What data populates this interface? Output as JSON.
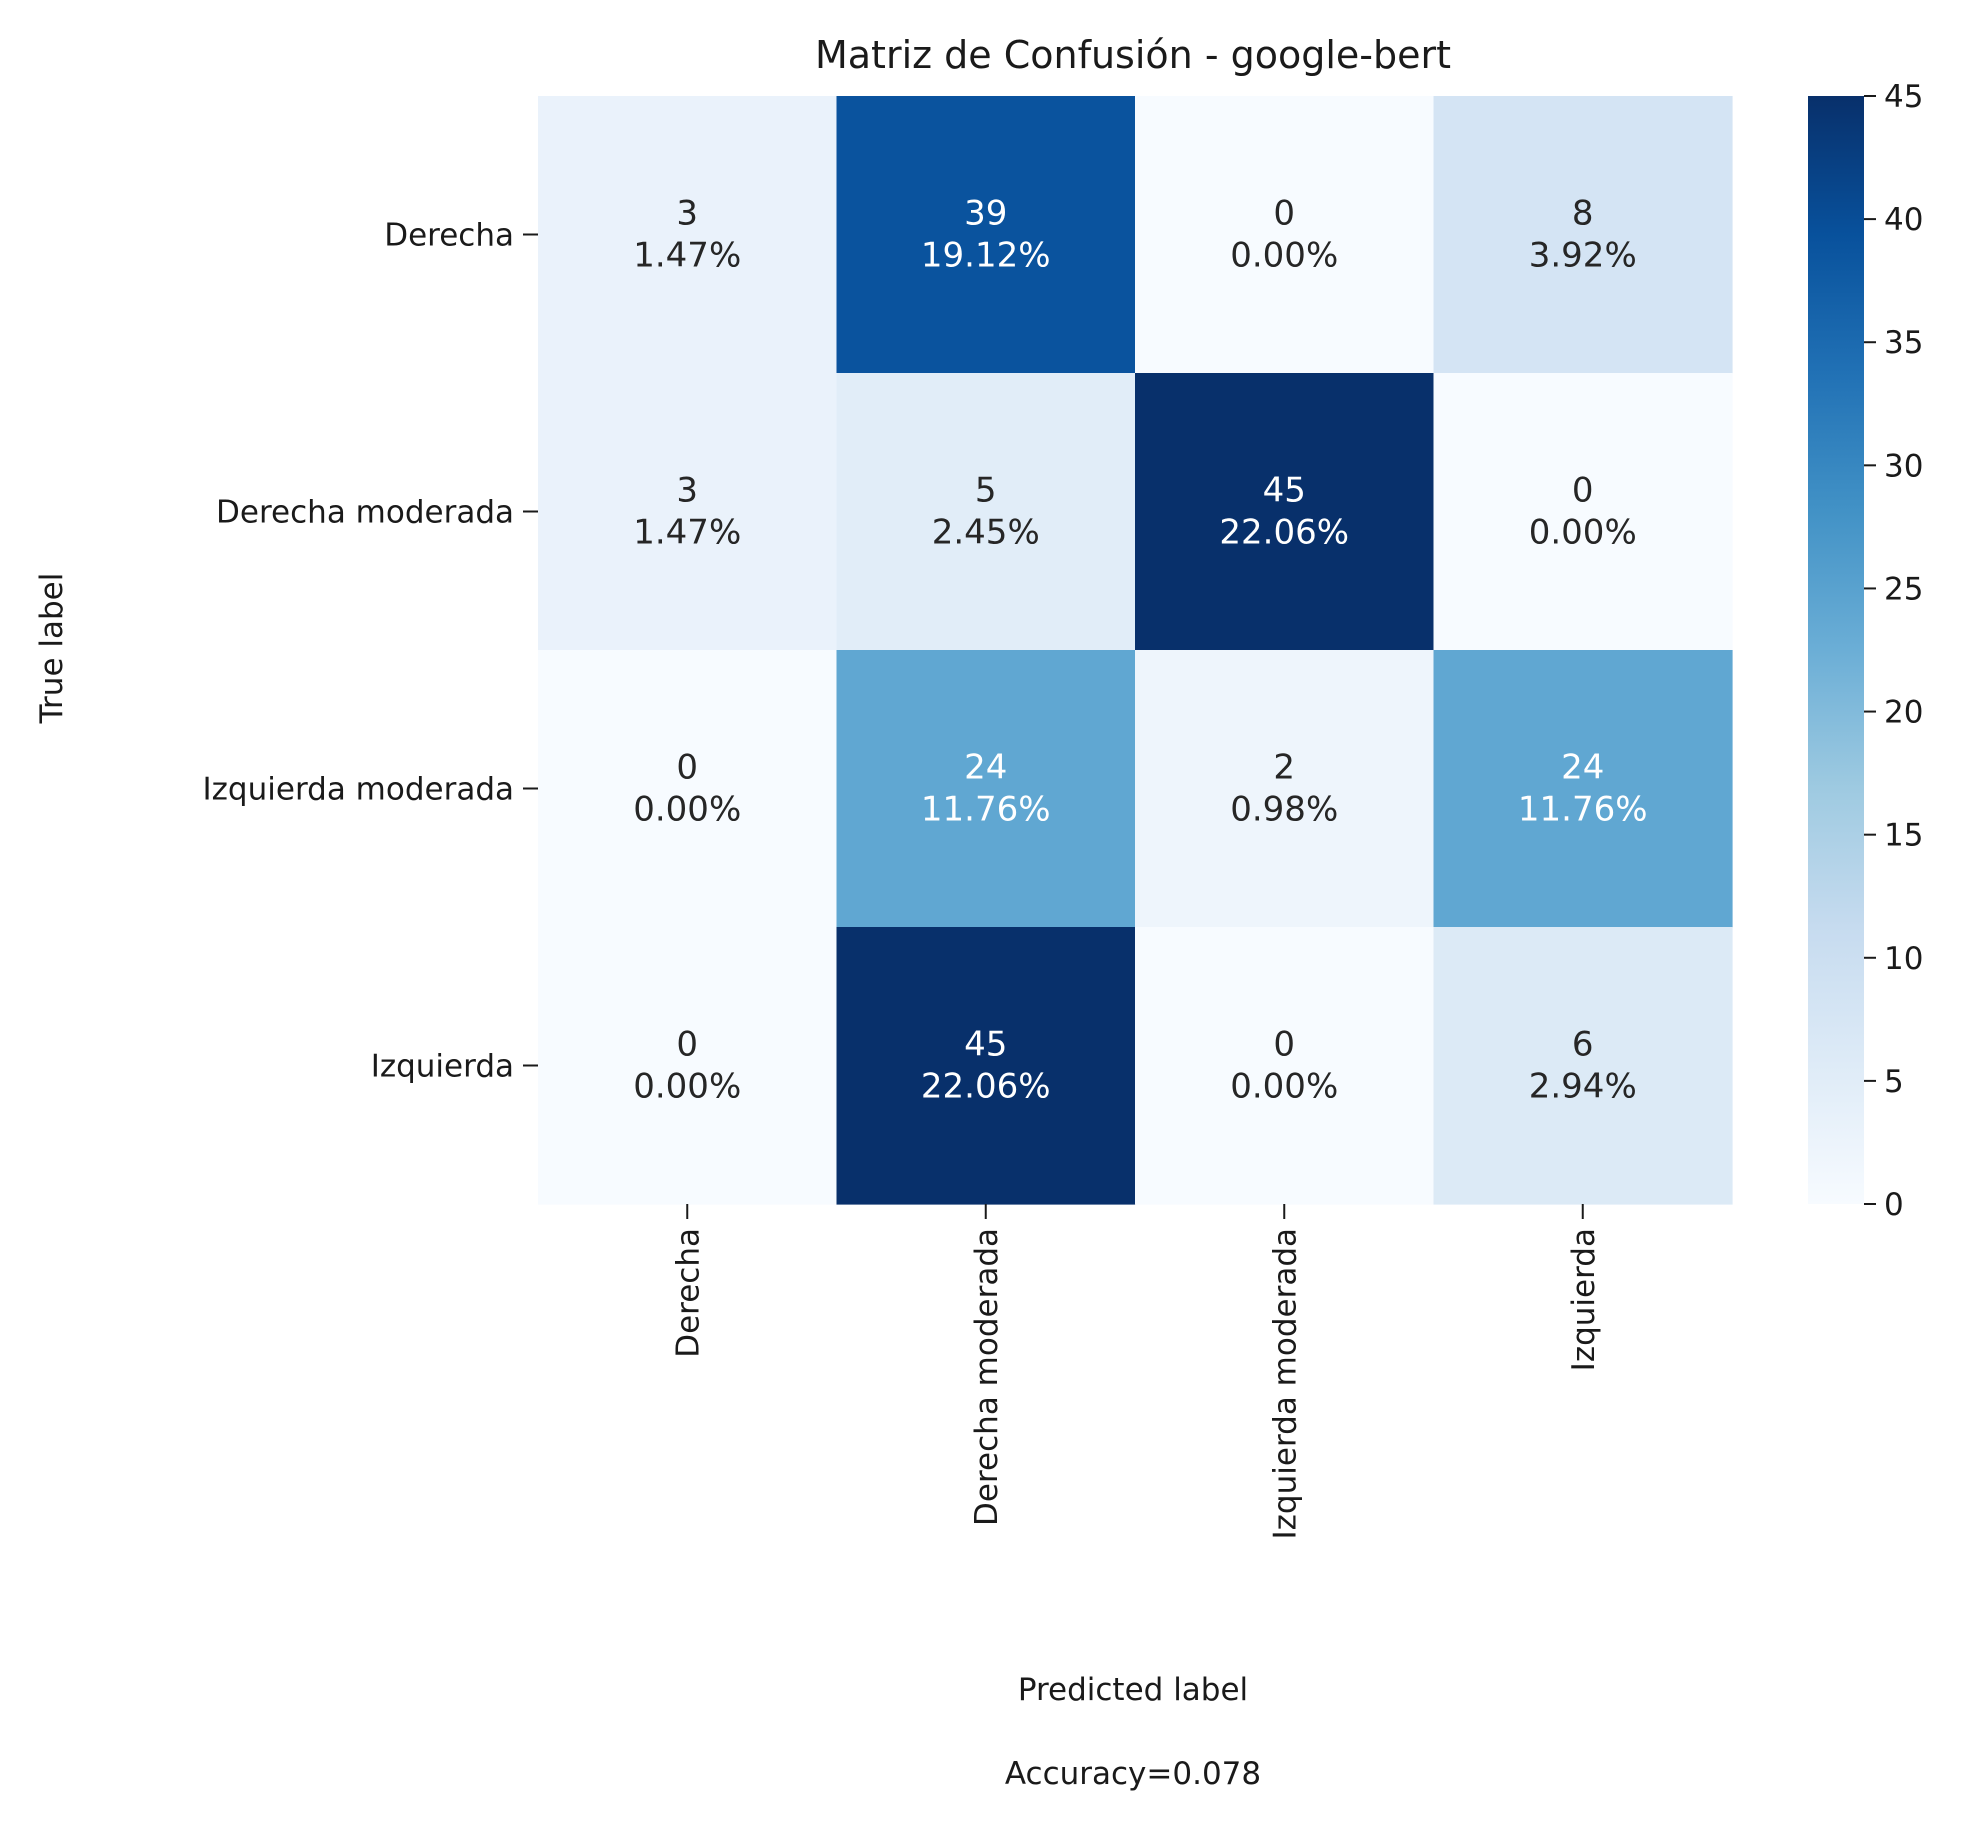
{
  "chart_data": {
    "type": "heatmap",
    "title": "Matriz de Confusión - google-bert",
    "xlabel": "Predicted label",
    "ylabel": "True label",
    "footer": "Accuracy=0.078",
    "row_labels": [
      "Derecha",
      "Derecha moderada",
      "Izquierda moderada",
      "Izquierda"
    ],
    "col_labels": [
      "Derecha",
      "Derecha moderada",
      "Izquierda moderada",
      "Izquierda"
    ],
    "values": [
      [
        3,
        39,
        0,
        8
      ],
      [
        3,
        5,
        45,
        0
      ],
      [
        0,
        24,
        2,
        24
      ],
      [
        0,
        45,
        0,
        6
      ]
    ],
    "percentages": [
      [
        "1.47%",
        "19.12%",
        "0.00%",
        "3.92%"
      ],
      [
        "1.47%",
        "2.45%",
        "22.06%",
        "0.00%"
      ],
      [
        "0.00%",
        "11.76%",
        "0.98%",
        "11.76%"
      ],
      [
        "0.00%",
        "22.06%",
        "0.00%",
        "2.94%"
      ]
    ],
    "colormap": "Blues",
    "colorbar": {
      "min": 0,
      "max": 45,
      "ticks": [
        "0",
        "5",
        "10",
        "15",
        "20",
        "25",
        "30",
        "35",
        "40",
        "45"
      ]
    }
  }
}
